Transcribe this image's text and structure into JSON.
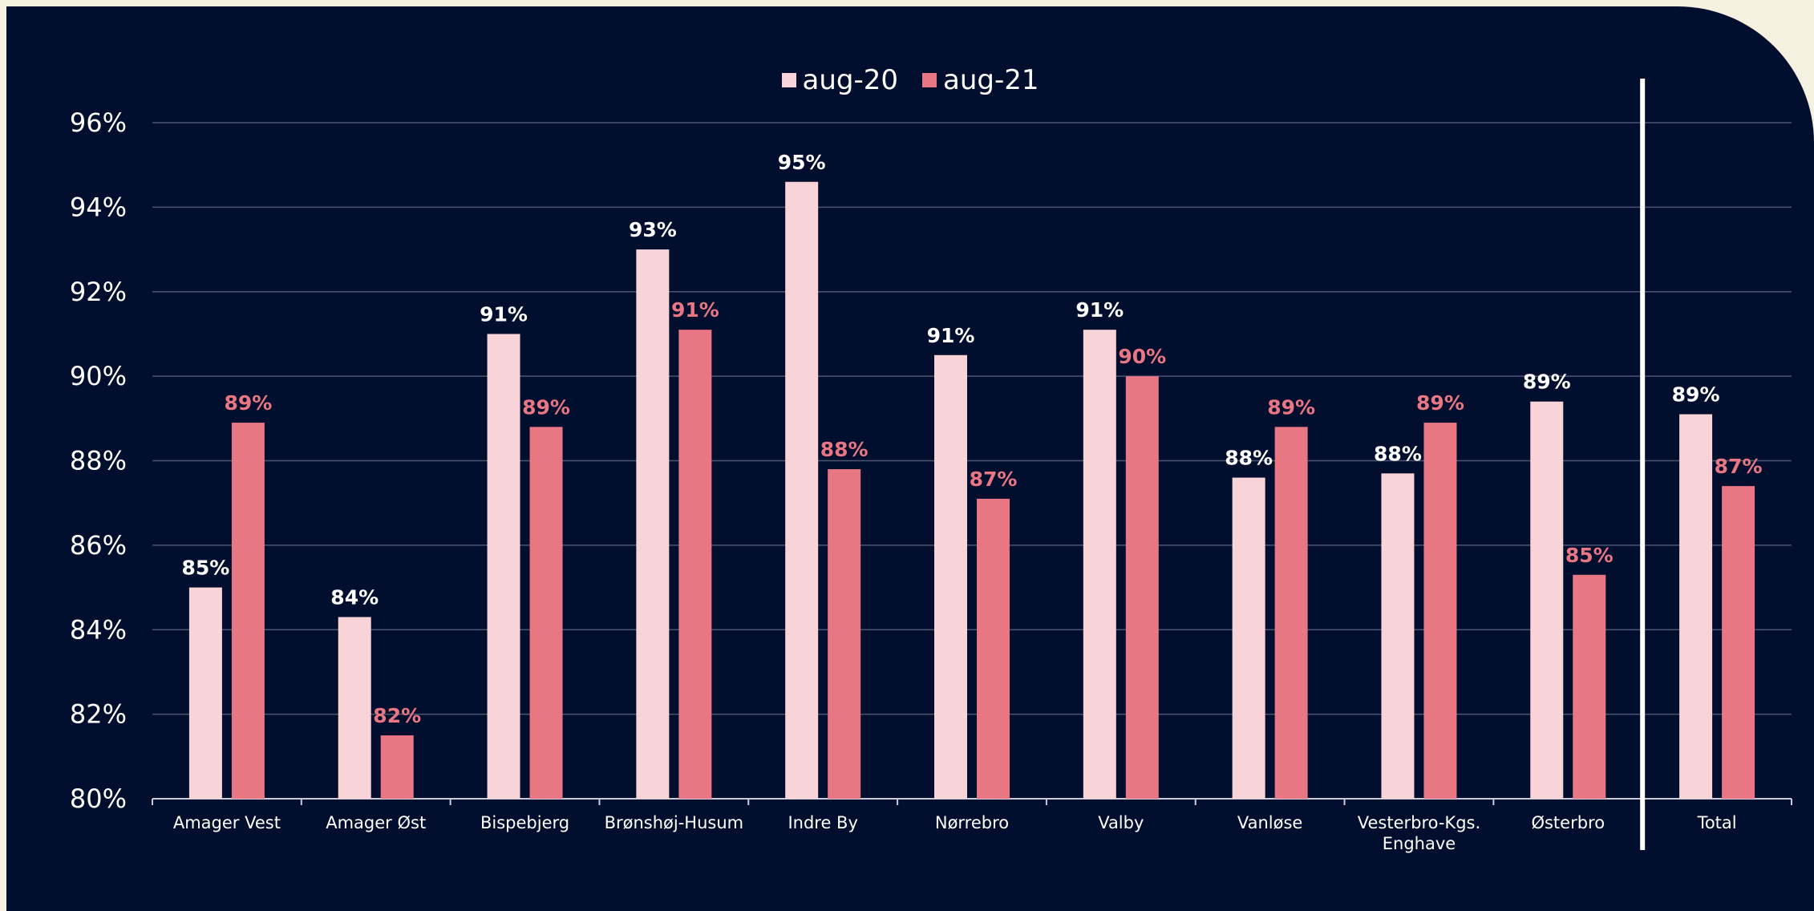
{
  "chart_data": {
    "type": "bar",
    "categories": [
      "Amager Vest",
      "Amager Øst",
      "Bispebjerg",
      "Brønshøj-Husum",
      "Indre By",
      "Nørrebro",
      "Valby",
      "Vanløse",
      "Vesterbro-Kgs.\nEnghave",
      "Østerbro",
      "Total"
    ],
    "series": [
      {
        "name": "aug-20",
        "color": "#f8d3d8",
        "values": [
          85.0,
          84.3,
          91.0,
          93.0,
          94.6,
          90.5,
          91.1,
          87.6,
          87.7,
          89.4,
          89.1
        ],
        "labels": [
          "85%",
          "84%",
          "91%",
          "93%",
          "95%",
          "91%",
          "91%",
          "88%",
          "88%",
          "89%",
          "89%"
        ]
      },
      {
        "name": "aug-21",
        "color": "#e97783",
        "values": [
          88.9,
          81.5,
          88.8,
          91.1,
          87.8,
          87.1,
          90.0,
          88.8,
          88.9,
          85.3,
          87.4
        ],
        "labels": [
          "89%",
          "82%",
          "89%",
          "91%",
          "88%",
          "87%",
          "90%",
          "89%",
          "89%",
          "85%",
          "87%"
        ]
      }
    ],
    "ylim": [
      80,
      96
    ],
    "yticks": [
      "80%",
      "82%",
      "84%",
      "86%",
      "88%",
      "90%",
      "92%",
      "94%",
      "96%"
    ],
    "grid": true,
    "legend_position": "top-center",
    "separator_before": "Total"
  }
}
